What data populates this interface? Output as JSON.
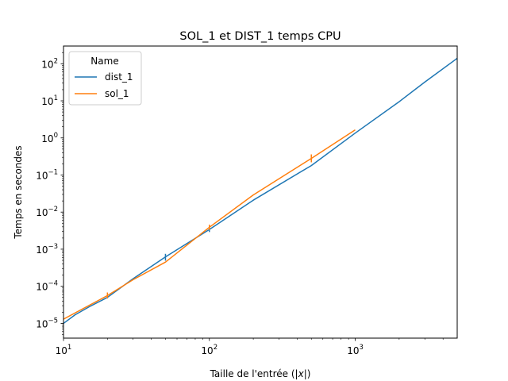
{
  "chart_data": {
    "type": "line",
    "title": "SOL_1 et DIST_1 temps CPU",
    "xlabel_prefix": "Taille de l'entrée (",
    "xlabel_var": "|x|",
    "xlabel_suffix": ")",
    "ylabel": "Temps en secondes",
    "xscale": "log",
    "yscale": "log",
    "xlim": [
      10,
      5000
    ],
    "ylim": [
      4e-06,
      300
    ],
    "grid": false,
    "legend": {
      "title": "Name",
      "position": "top-left"
    },
    "x_ticks": [
      {
        "base": "10",
        "exp": "1",
        "value": 10
      },
      {
        "base": "10",
        "exp": "2",
        "value": 100
      },
      {
        "base": "10",
        "exp": "3",
        "value": 1000
      }
    ],
    "y_ticks": [
      {
        "base": "10",
        "exp": "−5",
        "value": 1e-05
      },
      {
        "base": "10",
        "exp": "−4",
        "value": 0.0001
      },
      {
        "base": "10",
        "exp": "−3",
        "value": 0.001
      },
      {
        "base": "10",
        "exp": "−2",
        "value": 0.01
      },
      {
        "base": "10",
        "exp": "−1",
        "value": 0.1
      },
      {
        "base": "10",
        "exp": "0",
        "value": 1
      },
      {
        "base": "10",
        "exp": "1",
        "value": 10
      },
      {
        "base": "10",
        "exp": "2",
        "value": 100
      }
    ],
    "series": [
      {
        "name": "dist_1",
        "color": "#1f77b4",
        "x": [
          10,
          12,
          15,
          20,
          30,
          50,
          100,
          200,
          500,
          1000,
          2000,
          3000,
          5000
        ],
        "y": [
          1e-05,
          1.7e-05,
          2.8e-05,
          5e-05,
          0.00016,
          0.00062,
          0.0034,
          0.021,
          0.18,
          1.35,
          9.5,
          32,
          140
        ],
        "err_at": [
          {
            "x": 50,
            "low": 0.00049,
            "high": 0.00075
          },
          {
            "x": 100,
            "low": 0.0029,
            "high": 0.004
          }
        ]
      },
      {
        "name": "sol_1",
        "color": "#ff7f0e",
        "x": [
          10,
          20,
          30,
          50,
          100,
          200,
          500,
          1000
        ],
        "y": [
          1.3e-05,
          5.6e-05,
          0.00015,
          0.00045,
          0.0039,
          0.029,
          0.28,
          1.65
        ],
        "err_at": [
          {
            "x": 20,
            "low": 4.7e-05,
            "high": 6.8e-05
          },
          {
            "x": 100,
            "low": 0.0033,
            "high": 0.0046
          },
          {
            "x": 500,
            "low": 0.22,
            "high": 0.36
          }
        ]
      }
    ]
  }
}
